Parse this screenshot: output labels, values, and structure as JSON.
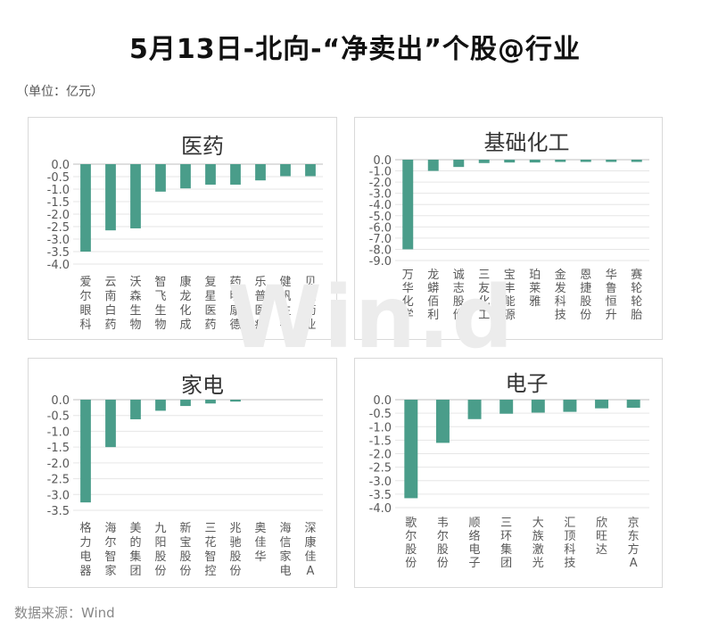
{
  "title": "5月13日-北向-“净卖出”个股@行业",
  "unit_note": "（单位：亿元）",
  "source": "数据来源：Wind",
  "watermark": "Win.d",
  "bar_color": "#4a9d8a",
  "chart_data": [
    {
      "type": "bar",
      "title": "医药",
      "categories": [
        "爱尔眼科",
        "云南白药",
        "沃森生物",
        "智飞生物",
        "康龙化成",
        "复星医药",
        "药明康德",
        "乐普医疗",
        "健帆生物",
        "贝达药业"
      ],
      "values": [
        -3.5,
        -2.65,
        -2.57,
        -1.1,
        -0.97,
        -0.82,
        -0.82,
        -0.65,
        -0.48,
        -0.48
      ],
      "ylim": [
        -4.0,
        0.0
      ],
      "yticks": [
        "0.0",
        "-0.5",
        "-1.0",
        "-1.5",
        "-2.0",
        "-2.5",
        "-3.0",
        "-3.5",
        "-4.0"
      ],
      "grid": true
    },
    {
      "type": "bar",
      "title": "基础化工",
      "categories": [
        "万华化学",
        "龙蟒佰利",
        "诚志股份",
        "三友化工",
        "宝丰能源",
        "珀莱雅",
        "金发科技",
        "恩捷股份",
        "华鲁恒升",
        "赛轮轮胎"
      ],
      "values": [
        -8.0,
        -1.0,
        -0.65,
        -0.3,
        -0.25,
        -0.25,
        -0.2,
        -0.2,
        -0.2,
        -0.2
      ],
      "ylim": [
        -9.0,
        0.0
      ],
      "yticks": [
        "0.0",
        "-1.0",
        "-2.0",
        "-3.0",
        "-4.0",
        "-5.0",
        "-6.0",
        "-7.0",
        "-8.0",
        "-9.0"
      ],
      "grid": true
    },
    {
      "type": "bar",
      "title": "家电",
      "categories": [
        "格力电器",
        "海尔智家",
        "美的集团",
        "九阳股份",
        "新宝股份",
        "三花智控",
        "兆驰股份",
        "奥佳华",
        "海信家电",
        "深康佳A"
      ],
      "values": [
        -3.25,
        -1.5,
        -0.62,
        -0.35,
        -0.2,
        -0.12,
        -0.06,
        0,
        0,
        0
      ],
      "ylim": [
        -3.5,
        0.0
      ],
      "yticks": [
        "0.0",
        "-0.5",
        "-1.0",
        "-1.5",
        "-2.0",
        "-2.5",
        "-3.0",
        "-3.5"
      ],
      "grid": true
    },
    {
      "type": "bar",
      "title": "电子",
      "categories": [
        "歌尔股份",
        "韦尔股份",
        "顺络电子",
        "三环集团",
        "大族激光",
        "汇顶科技",
        "欣旺达",
        "京东方A"
      ],
      "values": [
        -3.65,
        -1.6,
        -0.72,
        -0.52,
        -0.48,
        -0.45,
        -0.32,
        -0.3
      ],
      "ylim": [
        -4.0,
        0.0
      ],
      "yticks": [
        "0.0",
        "-0.5",
        "-1.0",
        "-1.5",
        "-2.0",
        "-2.5",
        "-3.0",
        "-3.5",
        "-4.0"
      ],
      "grid": true
    }
  ]
}
